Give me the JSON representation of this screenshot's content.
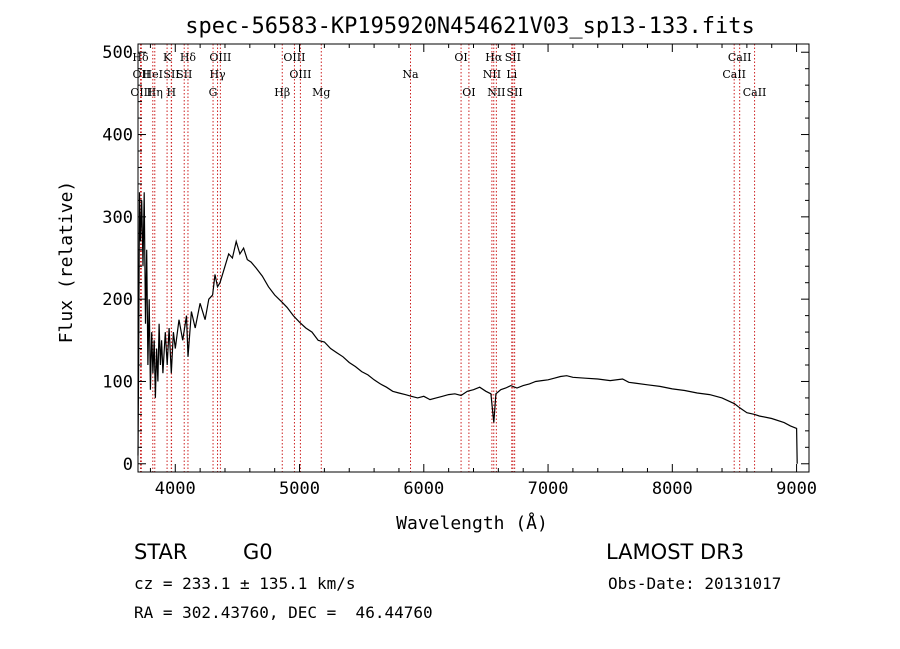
{
  "chart_data": {
    "type": "line",
    "title": "spec-56583-KP195920N454621V03_sp13-133.fits",
    "xlabel": "Wavelength (Å)",
    "ylabel": "Flux (relative)",
    "xlim": [
      3700,
      9100
    ],
    "ylim": [
      -10,
      510
    ],
    "x_ticks": [
      "4000",
      "5000",
      "6000",
      "7000",
      "8000",
      "9000"
    ],
    "x_tick_values": [
      4000,
      5000,
      6000,
      7000,
      8000,
      9000
    ],
    "y_ticks": [
      "0",
      "100",
      "200",
      "300",
      "400",
      "500"
    ],
    "y_tick_values": [
      0,
      100,
      200,
      300,
      400,
      500
    ],
    "series": [
      {
        "name": "flux",
        "points": [
          [
            3700,
            10
          ],
          [
            3705,
            120
          ],
          [
            3712,
            330
          ],
          [
            3720,
            270
          ],
          [
            3730,
            320
          ],
          [
            3740,
            240
          ],
          [
            3750,
            330
          ],
          [
            3760,
            170
          ],
          [
            3770,
            260
          ],
          [
            3780,
            120
          ],
          [
            3790,
            200
          ],
          [
            3800,
            90
          ],
          [
            3810,
            160
          ],
          [
            3820,
            110
          ],
          [
            3830,
            150
          ],
          [
            3840,
            80
          ],
          [
            3850,
            140
          ],
          [
            3860,
            100
          ],
          [
            3870,
            170
          ],
          [
            3880,
            120
          ],
          [
            3890,
            150
          ],
          [
            3900,
            110
          ],
          [
            3920,
            160
          ],
          [
            3935,
            120
          ],
          [
            3950,
            165
          ],
          [
            3968,
            110
          ],
          [
            3985,
            160
          ],
          [
            4000,
            140
          ],
          [
            4030,
            175
          ],
          [
            4060,
            150
          ],
          [
            4090,
            180
          ],
          [
            4102,
            130
          ],
          [
            4130,
            185
          ],
          [
            4160,
            165
          ],
          [
            4200,
            195
          ],
          [
            4240,
            175
          ],
          [
            4270,
            200
          ],
          [
            4300,
            205
          ],
          [
            4320,
            230
          ],
          [
            4340,
            215
          ],
          [
            4360,
            220
          ],
          [
            4400,
            240
          ],
          [
            4430,
            255
          ],
          [
            4460,
            250
          ],
          [
            4490,
            270
          ],
          [
            4520,
            255
          ],
          [
            4550,
            262
          ],
          [
            4580,
            248
          ],
          [
            4610,
            245
          ],
          [
            4650,
            238
          ],
          [
            4700,
            228
          ],
          [
            4750,
            215
          ],
          [
            4800,
            205
          ],
          [
            4861,
            196
          ],
          [
            4900,
            190
          ],
          [
            4950,
            180
          ],
          [
            5000,
            172
          ],
          [
            5050,
            165
          ],
          [
            5100,
            160
          ],
          [
            5150,
            150
          ],
          [
            5200,
            148
          ],
          [
            5250,
            140
          ],
          [
            5300,
            135
          ],
          [
            5350,
            130
          ],
          [
            5400,
            123
          ],
          [
            5450,
            118
          ],
          [
            5500,
            112
          ],
          [
            5550,
            108
          ],
          [
            5600,
            102
          ],
          [
            5650,
            97
          ],
          [
            5700,
            93
          ],
          [
            5750,
            88
          ],
          [
            5800,
            86
          ],
          [
            5850,
            84
          ],
          [
            5900,
            82
          ],
          [
            5950,
            80
          ],
          [
            6000,
            82
          ],
          [
            6050,
            78
          ],
          [
            6100,
            80
          ],
          [
            6150,
            82
          ],
          [
            6200,
            84
          ],
          [
            6250,
            85
          ],
          [
            6300,
            83
          ],
          [
            6350,
            88
          ],
          [
            6400,
            90
          ],
          [
            6450,
            93
          ],
          [
            6500,
            88
          ],
          [
            6540,
            85
          ],
          [
            6563,
            50
          ],
          [
            6580,
            85
          ],
          [
            6620,
            90
          ],
          [
            6660,
            92
          ],
          [
            6700,
            95
          ],
          [
            6750,
            92
          ],
          [
            6800,
            95
          ],
          [
            6850,
            97
          ],
          [
            6900,
            100
          ],
          [
            6950,
            101
          ],
          [
            7000,
            102
          ],
          [
            7050,
            104
          ],
          [
            7100,
            106
          ],
          [
            7150,
            107
          ],
          [
            7200,
            105
          ],
          [
            7300,
            104
          ],
          [
            7400,
            103
          ],
          [
            7500,
            101
          ],
          [
            7600,
            103
          ],
          [
            7650,
            99
          ],
          [
            7700,
            98
          ],
          [
            7800,
            96
          ],
          [
            7900,
            94
          ],
          [
            8000,
            91
          ],
          [
            8100,
            89
          ],
          [
            8200,
            86
          ],
          [
            8300,
            84
          ],
          [
            8400,
            80
          ],
          [
            8500,
            73
          ],
          [
            8542,
            68
          ],
          [
            8600,
            62
          ],
          [
            8662,
            60
          ],
          [
            8700,
            58
          ],
          [
            8800,
            55
          ],
          [
            8900,
            50
          ],
          [
            8950,
            46
          ],
          [
            9000,
            43
          ],
          [
            9005,
            0
          ]
        ]
      }
    ],
    "annotations": [
      {
        "label": "Hδ",
        "x": 3720,
        "row": 0
      },
      {
        "label": "OII",
        "x": 3727,
        "row": 1
      },
      {
        "label": "OIII",
        "x": 3727,
        "row": 2
      },
      {
        "label": "HeI",
        "x": 3819,
        "row": 1
      },
      {
        "label": "Hη",
        "x": 3835,
        "row": 2
      },
      {
        "label": "K",
        "x": 3934,
        "row": 0
      },
      {
        "label": "SII",
        "x": 3970,
        "row": 1
      },
      {
        "label": "H",
        "x": 3968,
        "row": 2
      },
      {
        "label": "Hδ",
        "x": 4102,
        "row": 0
      },
      {
        "label": "SII",
        "x": 4072,
        "row": 1
      },
      {
        "label": "OIII",
        "x": 4363,
        "row": 0
      },
      {
        "label": "Hγ",
        "x": 4340,
        "row": 1
      },
      {
        "label": "G",
        "x": 4304,
        "row": 2
      },
      {
        "label": "Hβ",
        "x": 4861,
        "row": 2
      },
      {
        "label": "OIII",
        "x": 4959,
        "row": 0
      },
      {
        "label": "OIII",
        "x": 5007,
        "row": 1
      },
      {
        "label": "Mg",
        "x": 5175,
        "row": 2
      },
      {
        "label": "Na",
        "x": 5893,
        "row": 1
      },
      {
        "label": "OI",
        "x": 6300,
        "row": 0
      },
      {
        "label": "OI",
        "x": 6363,
        "row": 2
      },
      {
        "label": "Hα",
        "x": 6563,
        "row": 0
      },
      {
        "label": "NII",
        "x": 6548,
        "row": 1
      },
      {
        "label": "NII",
        "x": 6584,
        "row": 2
      },
      {
        "label": "SII",
        "x": 6717,
        "row": 0
      },
      {
        "label": "Li",
        "x": 6708,
        "row": 1
      },
      {
        "label": "SII",
        "x": 6731,
        "row": 2
      },
      {
        "label": "CaII",
        "x": 8542,
        "row": 0
      },
      {
        "label": "CaII",
        "x": 8498,
        "row": 1
      },
      {
        "label": "CaII",
        "x": 8662,
        "row": 2
      }
    ],
    "line_color": "#000000",
    "marker_color": "#cc2222"
  },
  "info": {
    "class_label": "STAR",
    "subclass": "G0",
    "survey": "LAMOST DR3",
    "cz_text": "cz = 233.1 ± 135.1 km/s",
    "obs_date": "Obs-Date: 20131017",
    "coords_text": "RA = 302.43760, DEC =  46.44760"
  }
}
